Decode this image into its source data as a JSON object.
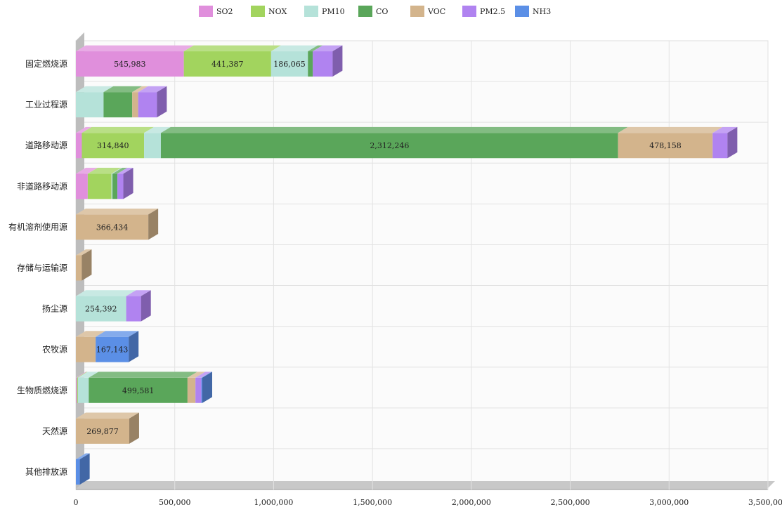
{
  "chart_data": {
    "type": "bar",
    "orientation": "horizontal",
    "stacked": true,
    "style_3d": true,
    "categories": [
      "固定燃烧源",
      "工业过程源",
      "道路移动源",
      "非道路移动源",
      "有机溶剂使用源",
      "存储与运输源",
      "扬尘源",
      "农牧源",
      "生物质燃烧源",
      "天然源",
      "其他排放源"
    ],
    "series": [
      {
        "name": "SO2",
        "color": "#e08fdc",
        "values": [
          545983,
          0,
          30000,
          60000,
          0,
          0,
          0,
          0,
          5000,
          0,
          0
        ]
      },
      {
        "name": "NOX",
        "color": "#a2d45e",
        "values": [
          441387,
          0,
          314840,
          120000,
          0,
          0,
          0,
          0,
          5000,
          0,
          0
        ]
      },
      {
        "name": "PM10",
        "color": "#b5e2d9",
        "values": [
          186065,
          140000,
          85000,
          5000,
          0,
          0,
          254392,
          0,
          55000,
          0,
          0
        ]
      },
      {
        "name": "CO",
        "color": "#5aa65a",
        "values": [
          25000,
          145000,
          2312246,
          25000,
          0,
          0,
          0,
          0,
          499581,
          0,
          0
        ]
      },
      {
        "name": "VOC",
        "color": "#d3b48c",
        "values": [
          0,
          30000,
          478158,
          0,
          366434,
          30000,
          0,
          100000,
          40000,
          269877,
          0
        ]
      },
      {
        "name": "PM2.5",
        "color": "#b083f0",
        "values": [
          100000,
          95000,
          75000,
          30000,
          0,
          0,
          75000,
          0,
          30000,
          0,
          0
        ]
      },
      {
        "name": "NH3",
        "color": "#5b8fe6",
        "values": [
          0,
          0,
          0,
          0,
          0,
          0,
          0,
          167143,
          5000,
          0,
          20000
        ]
      }
    ],
    "data_labels": [
      {
        "category": "固定燃烧源",
        "series": "SO2",
        "text": "545,983"
      },
      {
        "category": "固定燃烧源",
        "series": "NOX",
        "text": "441,387"
      },
      {
        "category": "固定燃烧源",
        "series": "PM10",
        "text": "186,065"
      },
      {
        "category": "道路移动源",
        "series": "NOX",
        "text": "314,840"
      },
      {
        "category": "道路移动源",
        "series": "CO",
        "text": "2,312,246"
      },
      {
        "category": "道路移动源",
        "series": "VOC",
        "text": "478,158"
      },
      {
        "category": "有机溶剂使用源",
        "series": "VOC",
        "text": "366,434"
      },
      {
        "category": "扬尘源",
        "series": "PM10",
        "text": "254,392"
      },
      {
        "category": "农牧源",
        "series": "NH3",
        "text": "167,143"
      },
      {
        "category": "生物质燃烧源",
        "series": "CO",
        "text": "499,581"
      },
      {
        "category": "天然源",
        "series": "VOC",
        "text": "269,877"
      }
    ],
    "x_ticks": [
      "0",
      "500,000",
      "1,000,000",
      "1,500,000",
      "2,000,000",
      "2,500,000",
      "3,000,000",
      "3,500,000"
    ],
    "xlim": [
      0,
      3500000
    ],
    "grid": true,
    "legend_position": "top-center",
    "title": "",
    "xlabel": "",
    "ylabel": ""
  }
}
